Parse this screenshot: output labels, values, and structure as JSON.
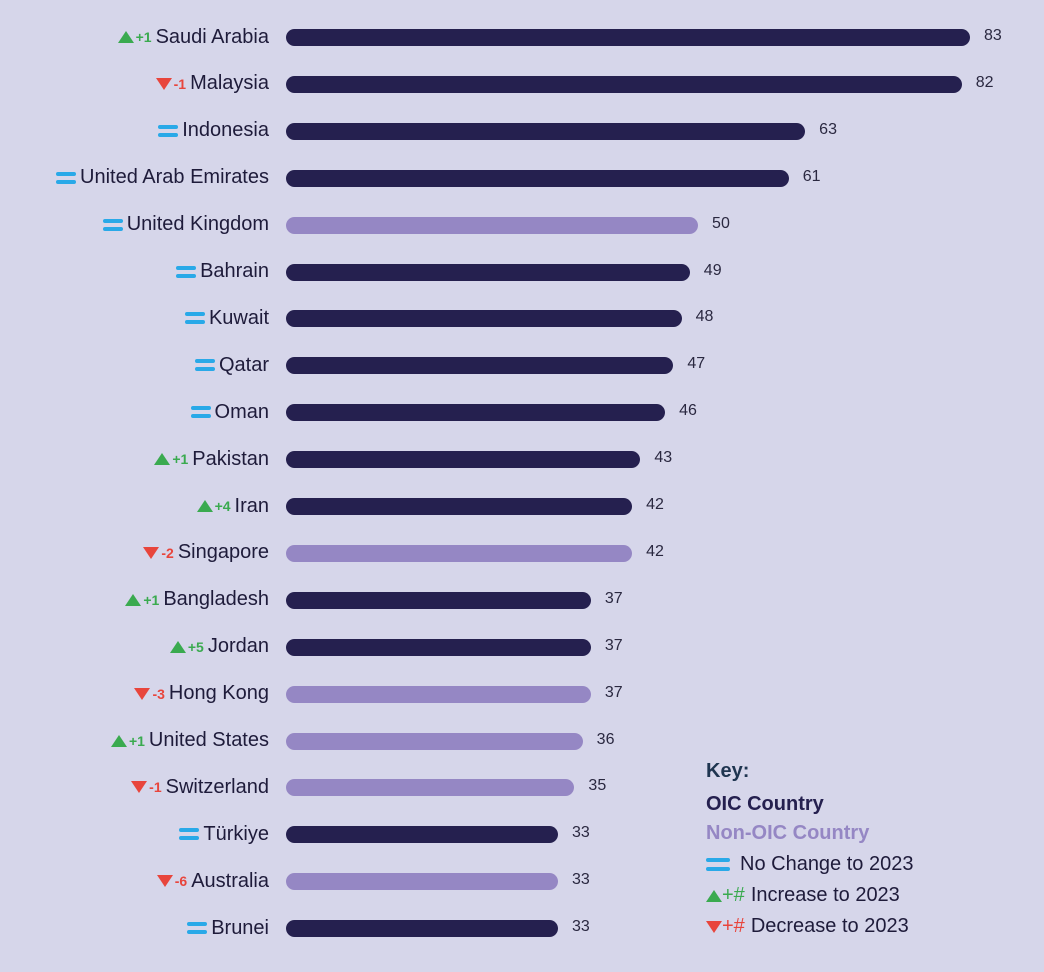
{
  "chart_data": {
    "type": "bar",
    "orientation": "horizontal",
    "categories": [
      "Saudi Arabia",
      "Malaysia",
      "Indonesia",
      "United Arab Emirates",
      "United Kingdom",
      "Bahrain",
      "Kuwait",
      "Qatar",
      "Oman",
      "Pakistan",
      "Iran",
      "Singapore",
      "Bangladesh",
      "Jordan",
      "Hong Kong",
      "United States",
      "Switzerland",
      "Türkiye",
      "Australia",
      "Brunei"
    ],
    "values": [
      83,
      82,
      63,
      61,
      50,
      49,
      48,
      47,
      46,
      43,
      42,
      42,
      37,
      37,
      37,
      36,
      35,
      33,
      33,
      33
    ],
    "group": [
      "OIC",
      "OIC",
      "OIC",
      "OIC",
      "Non-OIC",
      "OIC",
      "OIC",
      "OIC",
      "OIC",
      "OIC",
      "OIC",
      "Non-OIC",
      "OIC",
      "OIC",
      "Non-OIC",
      "Non-OIC",
      "Non-OIC",
      "OIC",
      "Non-OIC",
      "OIC"
    ],
    "change": [
      {
        "dir": "up",
        "text": "+1"
      },
      {
        "dir": "down",
        "text": "-1"
      },
      {
        "dir": "same",
        "text": ""
      },
      {
        "dir": "same",
        "text": ""
      },
      {
        "dir": "same",
        "text": ""
      },
      {
        "dir": "same",
        "text": ""
      },
      {
        "dir": "same",
        "text": ""
      },
      {
        "dir": "same",
        "text": ""
      },
      {
        "dir": "same",
        "text": ""
      },
      {
        "dir": "up",
        "text": "+1"
      },
      {
        "dir": "up",
        "text": "+4"
      },
      {
        "dir": "down",
        "text": "-2"
      },
      {
        "dir": "up",
        "text": "+1"
      },
      {
        "dir": "up",
        "text": "+5"
      },
      {
        "dir": "down",
        "text": "-3"
      },
      {
        "dir": "up",
        "text": "+1"
      },
      {
        "dir": "down",
        "text": "-1"
      },
      {
        "dir": "same",
        "text": ""
      },
      {
        "dir": "down",
        "text": "-6"
      },
      {
        "dir": "same",
        "text": ""
      }
    ],
    "xlim": [
      0,
      83
    ],
    "colors": {
      "OIC": "#25204f",
      "Non-OIC": "#9587c4",
      "up": "#3aaa4f",
      "down": "#e8453c",
      "same": "#29a9e8"
    }
  },
  "legend": {
    "title": "Key:",
    "oic": "OIC Country",
    "non_oic": "Non-OIC Country",
    "no_change": "No Change to 2023",
    "increase_hash": "+#",
    "increase": "Increase to 2023",
    "decrease_hash": "+#",
    "decrease": "Decrease to 2023"
  }
}
